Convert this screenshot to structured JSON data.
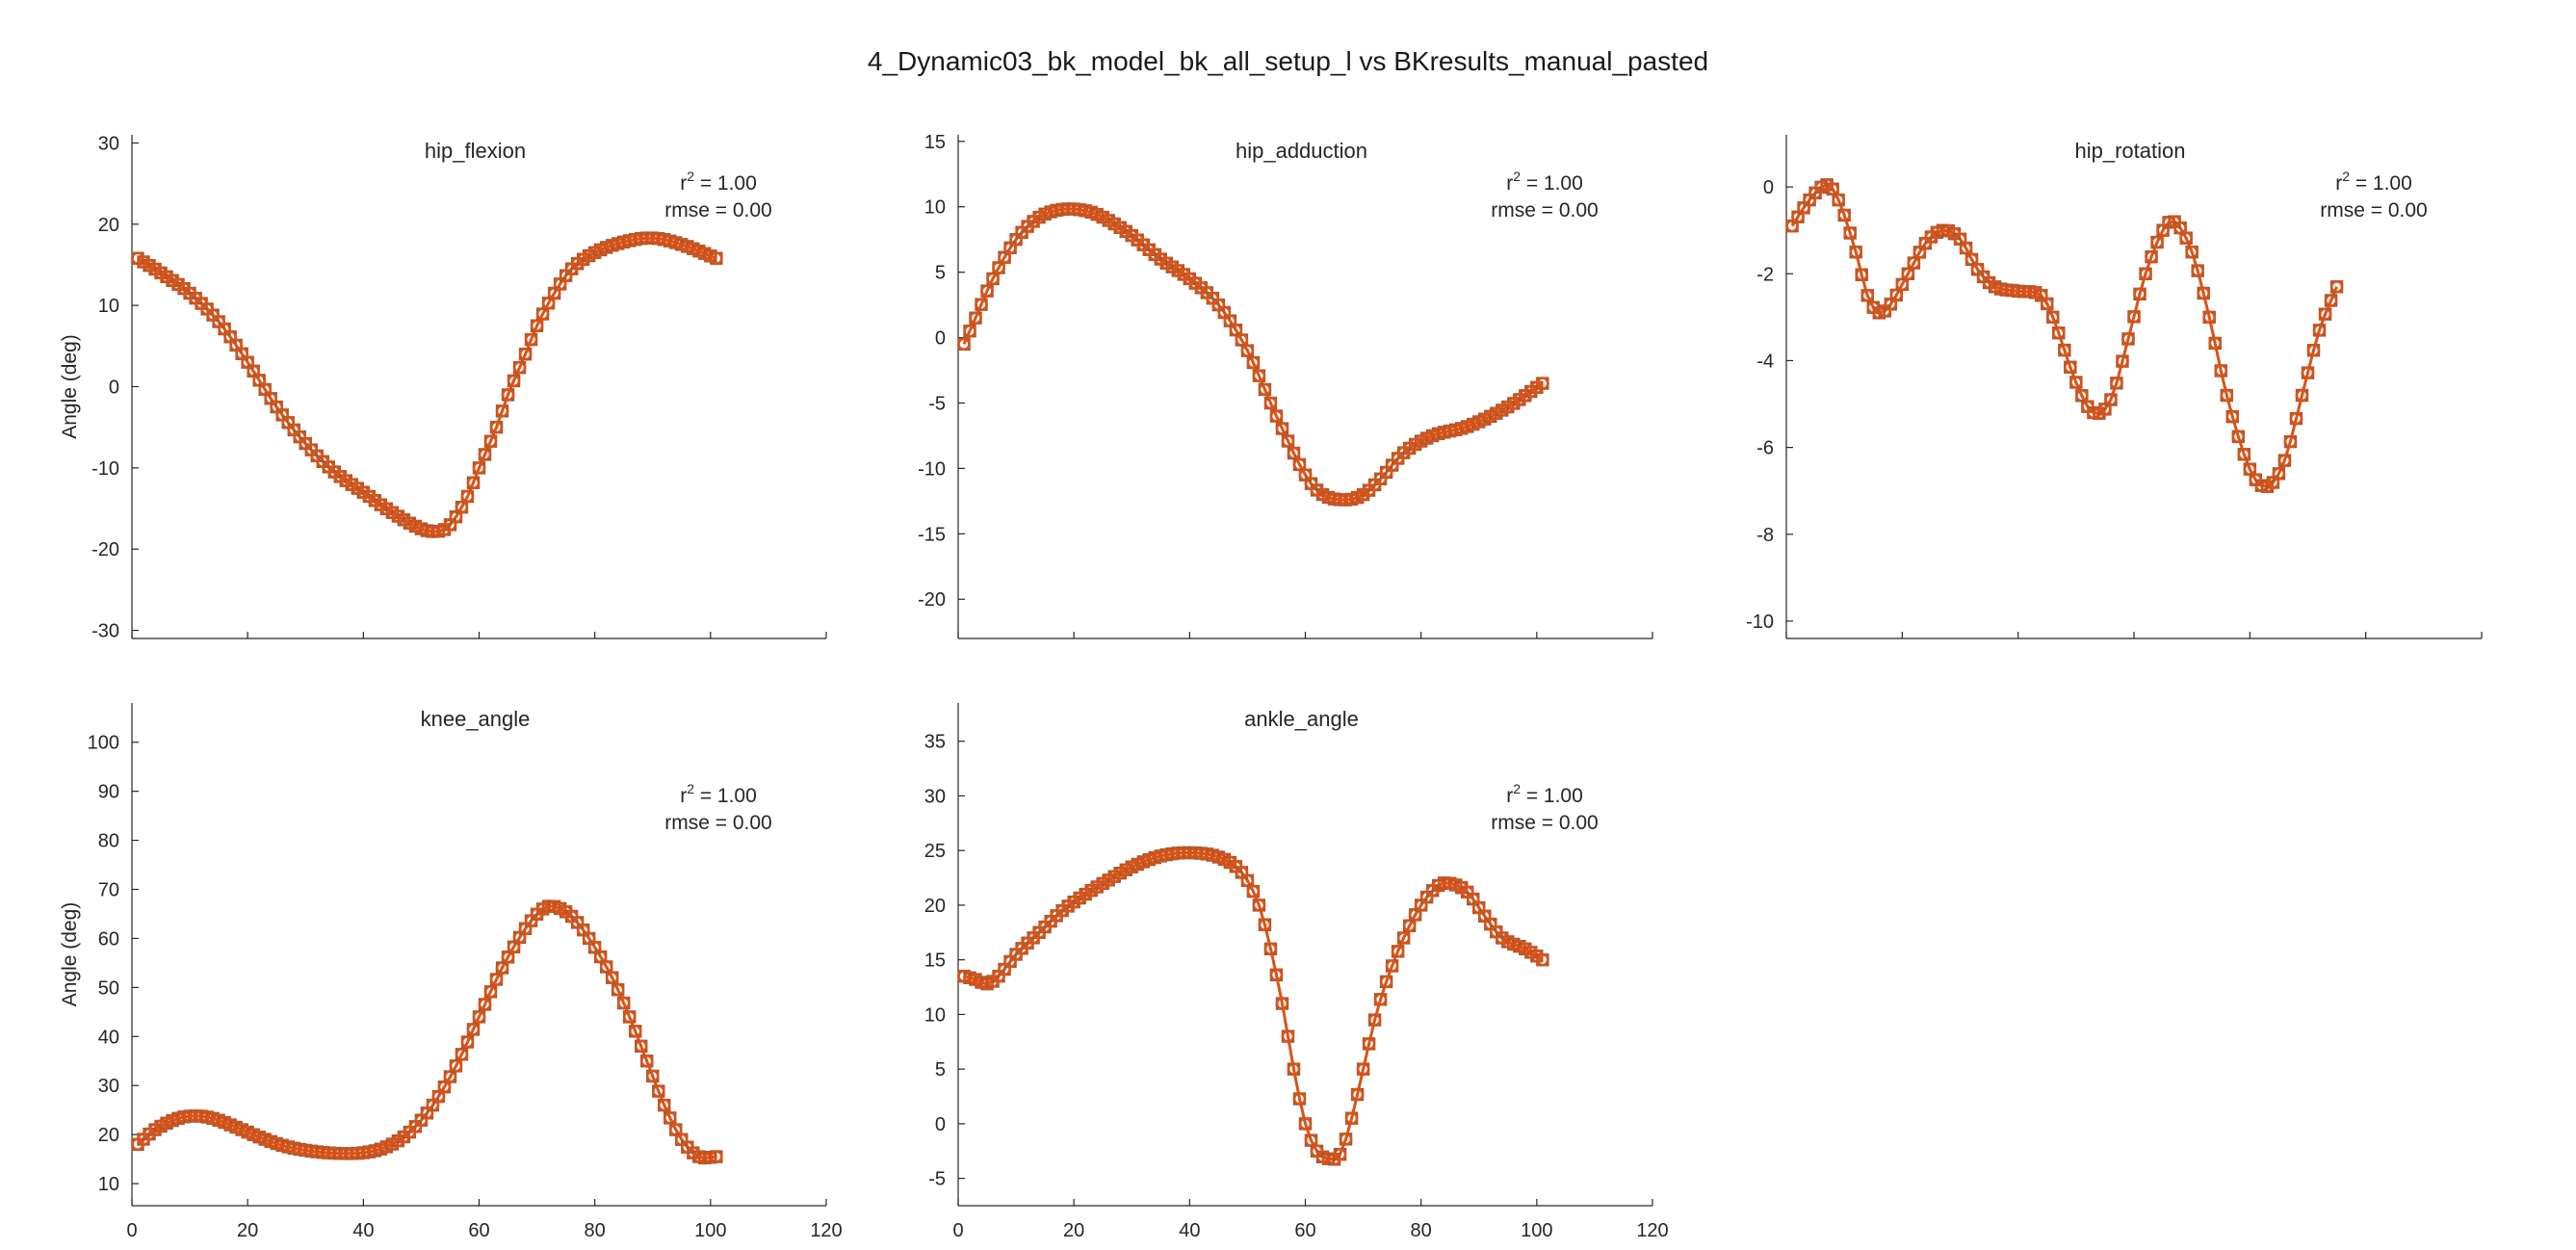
{
  "figure": {
    "title": "4_Dynamic03_bk_model_bk_all_setup_l vs BKresults_manual_pasted"
  },
  "colors": {
    "series_line": "#d95319",
    "marker_edge": "#a05a34",
    "axis": "#262626"
  },
  "chart_data": [
    {
      "type": "line",
      "title": "hip_flexion",
      "ylabel": "Angle (deg)",
      "xlabel": "",
      "xlim": [
        0,
        120
      ],
      "ylim": [
        -31,
        31
      ],
      "xticks": [],
      "yticks": [
        -30,
        -20,
        -10,
        0,
        10,
        20,
        30
      ],
      "r2_label": "r",
      "r2_exp": "2",
      "r2_value": " = 1.00",
      "rmse_label": "rmse = 0.00",
      "legend": "none",
      "grid": false,
      "key_points": [
        [
          1,
          15.8
        ],
        [
          5,
          14
        ],
        [
          10,
          11.5
        ],
        [
          15,
          8
        ],
        [
          20,
          3
        ],
        [
          25,
          -2.5
        ],
        [
          30,
          -7
        ],
        [
          35,
          -10.5
        ],
        [
          40,
          -13
        ],
        [
          45,
          -15.5
        ],
        [
          50,
          -17.5
        ],
        [
          53,
          -17.8
        ],
        [
          55,
          -17
        ],
        [
          58,
          -13.5
        ],
        [
          60,
          -10
        ],
        [
          63,
          -5
        ],
        [
          65,
          -1
        ],
        [
          68,
          4
        ],
        [
          70,
          7.5
        ],
        [
          73,
          11.5
        ],
        [
          76,
          14.5
        ],
        [
          80,
          16.5
        ],
        [
          85,
          17.8
        ],
        [
          90,
          18.3
        ],
        [
          95,
          17.5
        ],
        [
          101,
          15.8
        ]
      ]
    },
    {
      "type": "line",
      "title": "hip_adduction",
      "ylabel": "",
      "xlabel": "",
      "xlim": [
        0,
        120
      ],
      "ylim": [
        -23,
        15.5
      ],
      "xticks": [],
      "yticks": [
        -20,
        -15,
        -10,
        -5,
        0,
        5,
        10,
        15
      ],
      "r2_label": "r",
      "r2_exp": "2",
      "r2_value": " = 1.00",
      "rmse_label": "rmse = 0.00",
      "legend": "none",
      "grid": false,
      "key_points": [
        [
          1,
          -0.5
        ],
        [
          3,
          1.5
        ],
        [
          6,
          4.5
        ],
        [
          10,
          7.5
        ],
        [
          14,
          9.2
        ],
        [
          18,
          9.8
        ],
        [
          22,
          9.7
        ],
        [
          25,
          9.2
        ],
        [
          30,
          7.8
        ],
        [
          35,
          6
        ],
        [
          40,
          4.5
        ],
        [
          45,
          2.5
        ],
        [
          50,
          -1
        ],
        [
          55,
          -6
        ],
        [
          60,
          -10.5
        ],
        [
          63,
          -12
        ],
        [
          67,
          -12.4
        ],
        [
          70,
          -12
        ],
        [
          73,
          -10.8
        ],
        [
          77,
          -8.8
        ],
        [
          82,
          -7.5
        ],
        [
          88,
          -6.8
        ],
        [
          95,
          -5.3
        ],
        [
          101,
          -3.5
        ]
      ]
    },
    {
      "type": "line",
      "title": "hip_rotation",
      "ylabel": "",
      "xlabel": "",
      "xlim": [
        0,
        120
      ],
      "ylim": [
        -10.4,
        1.2
      ],
      "xticks": [],
      "yticks": [
        -10,
        -8,
        -6,
        -4,
        -2,
        0
      ],
      "r2_label": "r",
      "r2_exp": "2",
      "r2_value": " = 1.00",
      "rmse_label": "rmse = 0.00",
      "legend": "none",
      "grid": false,
      "key_points": [
        [
          1,
          -0.9
        ],
        [
          4,
          -0.3
        ],
        [
          7,
          0.05
        ],
        [
          9,
          -0.3
        ],
        [
          12,
          -1.5
        ],
        [
          14,
          -2.5
        ],
        [
          16,
          -2.9
        ],
        [
          18,
          -2.7
        ],
        [
          21,
          -2
        ],
        [
          24,
          -1.3
        ],
        [
          27,
          -1
        ],
        [
          30,
          -1.2
        ],
        [
          33,
          -1.9
        ],
        [
          36,
          -2.3
        ],
        [
          40,
          -2.4
        ],
        [
          44,
          -2.5
        ],
        [
          46,
          -3
        ],
        [
          50,
          -4.5
        ],
        [
          53,
          -5.2
        ],
        [
          56,
          -4.9
        ],
        [
          59,
          -3.5
        ],
        [
          62,
          -2
        ],
        [
          65,
          -1
        ],
        [
          67,
          -0.8
        ],
        [
          70,
          -1.5
        ],
        [
          73,
          -3
        ],
        [
          76,
          -4.8
        ],
        [
          80,
          -6.5
        ],
        [
          83,
          -6.9
        ],
        [
          86,
          -6.3
        ],
        [
          89,
          -4.8
        ],
        [
          92,
          -3.3
        ],
        [
          95,
          -2.3
        ]
      ]
    },
    {
      "type": "line",
      "title": "knee_angle",
      "ylabel": "Angle (deg)",
      "xlabel": "",
      "xlim": [
        0,
        120
      ],
      "ylim": [
        5.5,
        108
      ],
      "xticks": [
        0,
        20,
        40,
        60,
        80,
        100,
        120
      ],
      "yticks": [
        10,
        20,
        30,
        40,
        50,
        60,
        70,
        80,
        90,
        100
      ],
      "r2_label": "r",
      "r2_exp": "2",
      "r2_value": " = 1.00",
      "rmse_label": "rmse = 0.00",
      "legend": "none",
      "grid": false,
      "key_points": [
        [
          1,
          18
        ],
        [
          4,
          21
        ],
        [
          8,
          23.3
        ],
        [
          11,
          23.8
        ],
        [
          14,
          23.3
        ],
        [
          18,
          21.5
        ],
        [
          22,
          19.5
        ],
        [
          26,
          17.8
        ],
        [
          30,
          16.8
        ],
        [
          35,
          16.2
        ],
        [
          40,
          16.3
        ],
        [
          44,
          17.5
        ],
        [
          48,
          20.5
        ],
        [
          52,
          26
        ],
        [
          56,
          34
        ],
        [
          60,
          44
        ],
        [
          64,
          54
        ],
        [
          68,
          62
        ],
        [
          71,
          66
        ],
        [
          73,
          66.5
        ],
        [
          76,
          64.5
        ],
        [
          79,
          60
        ],
        [
          83,
          52
        ],
        [
          86,
          44
        ],
        [
          89,
          35
        ],
        [
          92,
          26
        ],
        [
          95,
          19
        ],
        [
          98,
          15.5
        ],
        [
          101,
          15.5
        ]
      ]
    },
    {
      "type": "line",
      "title": "ankle_angle",
      "ylabel": "",
      "xlabel": "",
      "xlim": [
        0,
        120
      ],
      "ylim": [
        -7.5,
        38.5
      ],
      "xticks": [
        0,
        20,
        40,
        60,
        80,
        100,
        120
      ],
      "yticks": [
        -5,
        0,
        5,
        10,
        15,
        20,
        25,
        30,
        35
      ],
      "r2_label": "r",
      "r2_exp": "2",
      "r2_value": " = 1.00",
      "rmse_label": "rmse = 0.00",
      "legend": "none",
      "grid": false,
      "key_points": [
        [
          1,
          13.5
        ],
        [
          3,
          13.2
        ],
        [
          5,
          12.8
        ],
        [
          7,
          13.5
        ],
        [
          10,
          15.5
        ],
        [
          14,
          17.5
        ],
        [
          18,
          19.5
        ],
        [
          22,
          21
        ],
        [
          26,
          22.3
        ],
        [
          30,
          23.5
        ],
        [
          35,
          24.5
        ],
        [
          40,
          24.8
        ],
        [
          45,
          24.4
        ],
        [
          49,
          23
        ],
        [
          52,
          20
        ],
        [
          54,
          16
        ],
        [
          56,
          11
        ],
        [
          58,
          5
        ],
        [
          60,
          0
        ],
        [
          62,
          -2.5
        ],
        [
          64,
          -3.2
        ],
        [
          66,
          -2.8
        ],
        [
          68,
          0.5
        ],
        [
          70,
          5
        ],
        [
          72,
          9.5
        ],
        [
          74,
          13
        ],
        [
          77,
          17
        ],
        [
          80,
          20
        ],
        [
          83,
          21.8
        ],
        [
          85,
          22
        ],
        [
          88,
          21.2
        ],
        [
          91,
          19
        ],
        [
          94,
          17
        ],
        [
          98,
          16
        ],
        [
          101,
          15
        ]
      ]
    }
  ]
}
